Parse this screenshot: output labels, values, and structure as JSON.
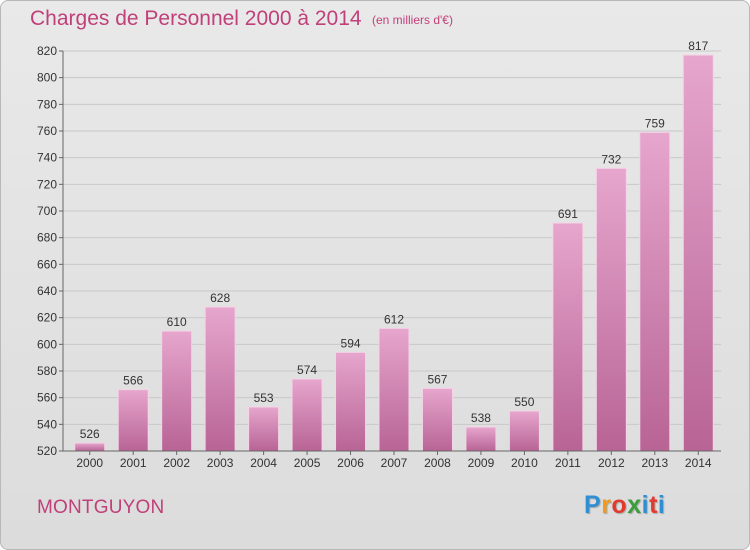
{
  "header": {
    "title": "Charges de Personnel 2000 à 2014",
    "unit": "(en milliers d'€)"
  },
  "footer": {
    "commune": "MONTGUYON",
    "logo_letters": [
      "P",
      "r",
      "o",
      "x",
      "i",
      "t",
      "i"
    ],
    "logo_colors": [
      "#2f8fd2",
      "#f29a1a",
      "#e23a2f",
      "#3a9e3a",
      "#2f8fd2",
      "#e23a2f",
      "#2f8fd2"
    ]
  },
  "colors": {
    "accent": "#c0407a",
    "bar_top": "#e6a6cd",
    "bar_bottom": "#b86495",
    "grid": "#c8c8c8"
  },
  "chart_data": {
    "type": "bar",
    "title": "Charges de Personnel 2000 à 2014",
    "xlabel": "",
    "ylabel": "",
    "categories": [
      "2000",
      "2001",
      "2002",
      "2003",
      "2004",
      "2005",
      "2006",
      "2007",
      "2008",
      "2009",
      "2010",
      "2011",
      "2012",
      "2013",
      "2014"
    ],
    "values": [
      526,
      566,
      610,
      628,
      553,
      574,
      594,
      612,
      567,
      538,
      550,
      691,
      732,
      759,
      817
    ],
    "ylim": [
      520,
      820
    ],
    "yticks": [
      520,
      540,
      560,
      580,
      600,
      620,
      640,
      660,
      680,
      700,
      720,
      740,
      760,
      780,
      800,
      820
    ],
    "grid": true,
    "data_labels": true
  }
}
